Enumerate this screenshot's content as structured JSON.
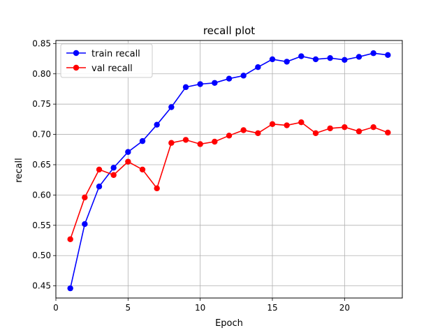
{
  "chart_data": {
    "type": "line",
    "title": "recall plot",
    "xlabel": "Epoch",
    "ylabel": "recall",
    "xlim": [
      0,
      24
    ],
    "ylim": [
      0.43,
      0.855
    ],
    "x_ticks": [
      0,
      5,
      10,
      15,
      20
    ],
    "y_ticks": [
      0.45,
      0.5,
      0.55,
      0.6,
      0.65,
      0.7,
      0.75,
      0.8,
      0.85
    ],
    "x_tick_labels": [
      "0",
      "5",
      "10",
      "15",
      "20"
    ],
    "y_tick_labels": [
      "0.45",
      "0.50",
      "0.55",
      "0.60",
      "0.65",
      "0.70",
      "0.75",
      "0.80",
      "0.85"
    ],
    "grid": true,
    "legend_position": "top-left",
    "x": [
      1,
      2,
      3,
      4,
      5,
      6,
      7,
      8,
      9,
      10,
      11,
      12,
      13,
      14,
      15,
      16,
      17,
      18,
      19,
      20,
      21,
      22,
      23
    ],
    "series": [
      {
        "name": "train recall",
        "color": "#0000ff",
        "values": [
          0.446,
          0.552,
          0.614,
          0.645,
          0.671,
          0.689,
          0.716,
          0.745,
          0.778,
          0.783,
          0.785,
          0.792,
          0.797,
          0.811,
          0.824,
          0.82,
          0.829,
          0.824,
          0.826,
          0.823,
          0.828,
          0.834,
          0.831
        ]
      },
      {
        "name": "val recall",
        "color": "#ff0000",
        "values": [
          0.527,
          0.596,
          0.642,
          0.633,
          0.655,
          0.642,
          0.611,
          0.686,
          0.691,
          0.684,
          0.688,
          0.698,
          0.707,
          0.702,
          0.717,
          0.715,
          0.72,
          0.702,
          0.71,
          0.712,
          0.705,
          0.712,
          0.703
        ]
      }
    ]
  }
}
